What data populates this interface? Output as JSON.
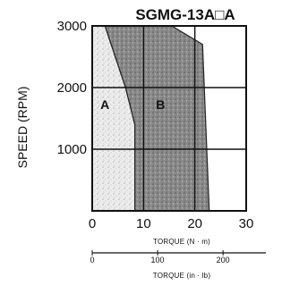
{
  "chart_data": {
    "type": "area",
    "title": "SGMG-13A□A",
    "xlabel": "TORQUE (N · m)",
    "ylabel": "SPEED (RPM)",
    "xlim": [
      0,
      30
    ],
    "ylim": [
      0,
      3000
    ],
    "x_ticks": [
      "0",
      "10",
      "20",
      "30"
    ],
    "y_ticks": [
      "1000",
      "2000",
      "3000"
    ],
    "grid": true,
    "secondary_x": {
      "label": "TORQUE (in · lb)",
      "ticks": [
        "0",
        "100",
        "200"
      ],
      "tick_values": [
        0,
        100,
        200
      ],
      "lim": [
        0,
        265.5
      ]
    },
    "regions": [
      {
        "name": "A",
        "points": [
          [
            2.5,
            3000
          ],
          [
            6.5,
            2000
          ],
          [
            8.3,
            1400
          ],
          [
            8.3,
            0
          ],
          [
            0,
            0
          ],
          [
            0,
            3000
          ]
        ]
      },
      {
        "name": "B",
        "points": [
          [
            2.5,
            3000
          ],
          [
            15.5,
            3000
          ],
          [
            21.5,
            2700
          ],
          [
            22.8,
            0
          ],
          [
            8.3,
            0
          ],
          [
            8.3,
            1400
          ],
          [
            6.5,
            2000
          ]
        ]
      }
    ]
  }
}
